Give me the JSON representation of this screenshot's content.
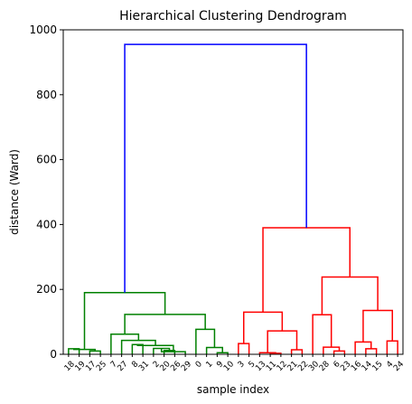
{
  "chart_data": {
    "type": "dendrogram",
    "title": "Hierarchical Clustering Dendrogram",
    "xlabel": "sample index",
    "ylabel": "distance (Ward)",
    "ylim": [
      0,
      1000
    ],
    "yticks": [
      0,
      200,
      400,
      600,
      800,
      1000
    ],
    "leaf_order": [
      "18",
      "19",
      "17",
      "25",
      "7",
      "27",
      "8",
      "31",
      "2",
      "20",
      "26",
      "29",
      "0",
      "1",
      "9",
      "10",
      "3",
      "5",
      "13",
      "11",
      "12",
      "21",
      "22",
      "30",
      "28",
      "6",
      "23",
      "16",
      "14",
      "15",
      "4",
      "24"
    ],
    "color_threshold_clusters": [
      {
        "color": "#008000",
        "leaves": [
          "18",
          "19",
          "17",
          "25",
          "7",
          "27",
          "8",
          "31",
          "2",
          "20",
          "26",
          "29",
          "0",
          "1",
          "9",
          "10"
        ]
      },
      {
        "color": "#ff0000",
        "leaves": [
          "3",
          "5",
          "13",
          "11",
          "12",
          "21",
          "22",
          "30",
          "28",
          "6",
          "23",
          "16",
          "14",
          "15",
          "4",
          "24"
        ]
      }
    ],
    "merges": [
      {
        "left": {
          "leaf": 0
        },
        "right": {
          "leaf": 1
        },
        "height": 17,
        "color": "#008000"
      },
      {
        "left": {
          "leaf": 2
        },
        "right": {
          "leaf": 3
        },
        "height": 10,
        "color": "#008000"
      },
      {
        "left": {
          "merge": 0
        },
        "right": {
          "merge": 1
        },
        "height": 15,
        "color": "#008000"
      },
      {
        "left": {
          "leaf": 9
        },
        "right": {
          "leaf": 10
        },
        "height": 12,
        "color": "#008000"
      },
      {
        "left": {
          "leaf": 8
        },
        "right": {
          "merge": 3
        },
        "height": 18,
        "color": "#008000"
      },
      {
        "left": {
          "merge": 4
        },
        "right": {
          "leaf": 11
        },
        "height": 8,
        "color": "#008000"
      },
      {
        "left": {
          "leaf": 6
        },
        "right": {
          "leaf": 7
        },
        "height": 30,
        "color": "#008000"
      },
      {
        "left": {
          "merge": 6
        },
        "right": {
          "merge": 5
        },
        "height": 27,
        "color": "#008000"
      },
      {
        "left": {
          "leaf": 5
        },
        "right": {
          "merge": 7
        },
        "height": 43,
        "color": "#008000"
      },
      {
        "left": {
          "leaf": 4
        },
        "right": {
          "merge": 8
        },
        "height": 62,
        "color": "#008000"
      },
      {
        "left": {
          "leaf": 14
        },
        "right": {
          "leaf": 15
        },
        "height": 5,
        "color": "#008000"
      },
      {
        "left": {
          "leaf": 13
        },
        "right": {
          "merge": 10
        },
        "height": 21,
        "color": "#008000"
      },
      {
        "left": {
          "leaf": 12
        },
        "right": {
          "merge": 11
        },
        "height": 77,
        "color": "#008000"
      },
      {
        "left": {
          "merge": 9
        },
        "right": {
          "merge": 12
        },
        "height": 123,
        "color": "#008000"
      },
      {
        "left": {
          "merge": 2
        },
        "right": {
          "merge": 13
        },
        "height": 190,
        "color": "#008000"
      },
      {
        "left": {
          "leaf": 16
        },
        "right": {
          "leaf": 17
        },
        "height": 33,
        "color": "#ff0000"
      },
      {
        "left": {
          "leaf": 19
        },
        "right": {
          "leaf": 20
        },
        "height": 3,
        "color": "#ff0000"
      },
      {
        "left": {
          "leaf": 18
        },
        "right": {
          "merge": 16
        },
        "height": 5,
        "color": "#ff0000"
      },
      {
        "left": {
          "leaf": 21
        },
        "right": {
          "leaf": 22
        },
        "height": 14,
        "color": "#ff0000"
      },
      {
        "left": {
          "merge": 17
        },
        "right": {
          "merge": 18
        },
        "height": 72,
        "color": "#ff0000"
      },
      {
        "left": {
          "merge": 15
        },
        "right": {
          "merge": 19
        },
        "height": 130,
        "color": "#ff0000"
      },
      {
        "left": {
          "leaf": 25
        },
        "right": {
          "leaf": 26
        },
        "height": 10,
        "color": "#ff0000"
      },
      {
        "left": {
          "leaf": 24
        },
        "right": {
          "merge": 21
        },
        "height": 22,
        "color": "#ff0000"
      },
      {
        "left": {
          "leaf": 23
        },
        "right": {
          "merge": 22
        },
        "height": 122,
        "color": "#ff0000"
      },
      {
        "left": {
          "leaf": 28
        },
        "right": {
          "leaf": 29
        },
        "height": 17,
        "color": "#ff0000"
      },
      {
        "left": {
          "leaf": 27
        },
        "right": {
          "merge": 24
        },
        "height": 38,
        "color": "#ff0000"
      },
      {
        "left": {
          "leaf": 30
        },
        "right": {
          "leaf": 31
        },
        "height": 41,
        "color": "#ff0000"
      },
      {
        "left": {
          "merge": 25
        },
        "right": {
          "merge": 26
        },
        "height": 135,
        "color": "#ff0000"
      },
      {
        "left": {
          "merge": 23
        },
        "right": {
          "merge": 27
        },
        "height": 238,
        "color": "#ff0000"
      },
      {
        "left": {
          "merge": 20
        },
        "right": {
          "merge": 28
        },
        "height": 390,
        "color": "#ff0000"
      },
      {
        "left": {
          "merge": 14
        },
        "right": {
          "merge": 29
        },
        "height": 955,
        "color": "#0000ff"
      }
    ]
  }
}
